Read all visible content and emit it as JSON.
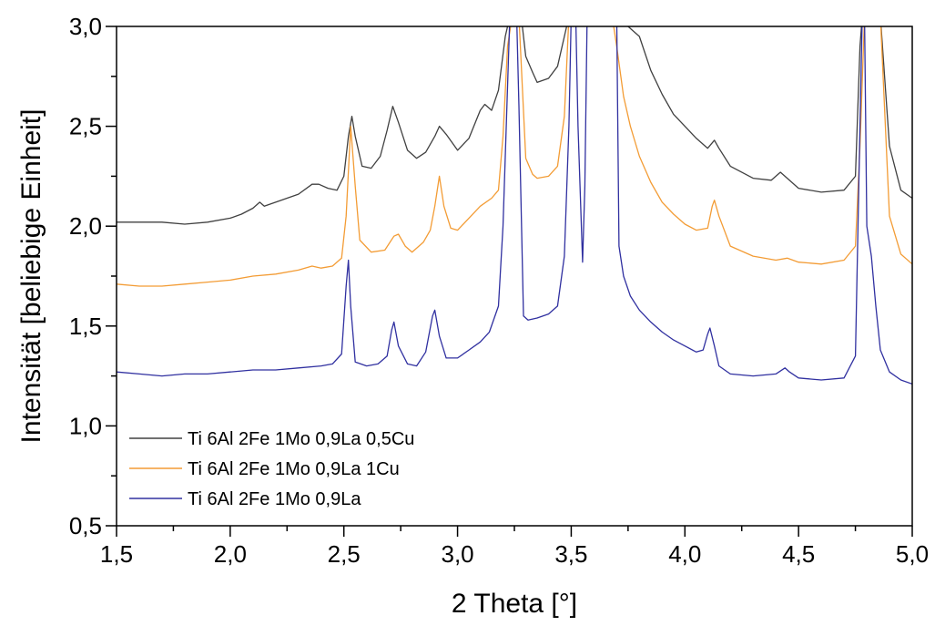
{
  "chart_data": {
    "type": "line",
    "xlabel": "2 Theta [°]",
    "ylabel": "Intensität [beliebige Einheit]",
    "xlim": [
      1.5,
      5.0
    ],
    "ylim": [
      0.5,
      3.0
    ],
    "x_ticks": [
      "1,5",
      "2,0",
      "2,5",
      "3,0",
      "3,5",
      "4,0",
      "4,5",
      "5,0"
    ],
    "y_ticks": [
      "0,5",
      "1,0",
      "1,5",
      "2,0",
      "2,5",
      "3,0"
    ],
    "x_tick_values": [
      1.5,
      2.0,
      2.5,
      3.0,
      3.5,
      4.0,
      4.5,
      5.0
    ],
    "y_tick_values": [
      0.5,
      1.0,
      1.5,
      2.0,
      2.5,
      3.0
    ],
    "grid": false,
    "legend_position": "bottom-left",
    "series": [
      {
        "name": "Ti 6Al 2Fe 1Mo 0,9La 0,5Cu",
        "color": "#404040",
        "points": [
          [
            1.5,
            2.02
          ],
          [
            1.6,
            2.02
          ],
          [
            1.7,
            2.02
          ],
          [
            1.8,
            2.01
          ],
          [
            1.9,
            2.02
          ],
          [
            2.0,
            2.04
          ],
          [
            2.05,
            2.06
          ],
          [
            2.1,
            2.09
          ],
          [
            2.13,
            2.12
          ],
          [
            2.15,
            2.1
          ],
          [
            2.2,
            2.12
          ],
          [
            2.3,
            2.16
          ],
          [
            2.36,
            2.21
          ],
          [
            2.39,
            2.21
          ],
          [
            2.43,
            2.19
          ],
          [
            2.47,
            2.18
          ],
          [
            2.5,
            2.25
          ],
          [
            2.52,
            2.45
          ],
          [
            2.535,
            2.55
          ],
          [
            2.55,
            2.45
          ],
          [
            2.58,
            2.3
          ],
          [
            2.62,
            2.29
          ],
          [
            2.66,
            2.35
          ],
          [
            2.69,
            2.48
          ],
          [
            2.715,
            2.6
          ],
          [
            2.74,
            2.52
          ],
          [
            2.78,
            2.38
          ],
          [
            2.82,
            2.34
          ],
          [
            2.86,
            2.37
          ],
          [
            2.9,
            2.45
          ],
          [
            2.92,
            2.5
          ],
          [
            2.95,
            2.46
          ],
          [
            3.0,
            2.38
          ],
          [
            3.05,
            2.44
          ],
          [
            3.1,
            2.58
          ],
          [
            3.12,
            2.61
          ],
          [
            3.15,
            2.58
          ],
          [
            3.18,
            2.68
          ],
          [
            3.21,
            2.95
          ],
          [
            3.23,
            3.05
          ],
          [
            3.26,
            3.05
          ],
          [
            3.28,
            3.05
          ],
          [
            3.3,
            2.85
          ],
          [
            3.33,
            2.77
          ],
          [
            3.35,
            2.72
          ],
          [
            3.4,
            2.74
          ],
          [
            3.44,
            2.8
          ],
          [
            3.47,
            2.95
          ],
          [
            3.49,
            3.05
          ],
          [
            3.55,
            3.05
          ],
          [
            3.7,
            3.05
          ],
          [
            3.8,
            2.95
          ],
          [
            3.85,
            2.78
          ],
          [
            3.9,
            2.66
          ],
          [
            3.95,
            2.56
          ],
          [
            4.0,
            2.5
          ],
          [
            4.05,
            2.44
          ],
          [
            4.1,
            2.39
          ],
          [
            4.13,
            2.43
          ],
          [
            4.15,
            2.39
          ],
          [
            4.2,
            2.3
          ],
          [
            4.3,
            2.24
          ],
          [
            4.38,
            2.23
          ],
          [
            4.42,
            2.27
          ],
          [
            4.45,
            2.24
          ],
          [
            4.5,
            2.19
          ],
          [
            4.6,
            2.17
          ],
          [
            4.7,
            2.18
          ],
          [
            4.75,
            2.25
          ],
          [
            4.77,
            2.9
          ],
          [
            4.78,
            3.05
          ],
          [
            4.86,
            3.05
          ],
          [
            4.9,
            2.4
          ],
          [
            4.95,
            2.18
          ],
          [
            5.0,
            2.14
          ]
        ]
      },
      {
        "name": "Ti 6Al 2Fe 1Mo 0,9La 1Cu",
        "color": "#f39c35",
        "points": [
          [
            1.5,
            1.71
          ],
          [
            1.6,
            1.7
          ],
          [
            1.7,
            1.7
          ],
          [
            1.8,
            1.71
          ],
          [
            1.9,
            1.72
          ],
          [
            2.0,
            1.73
          ],
          [
            2.1,
            1.75
          ],
          [
            2.2,
            1.76
          ],
          [
            2.3,
            1.78
          ],
          [
            2.36,
            1.8
          ],
          [
            2.4,
            1.79
          ],
          [
            2.45,
            1.8
          ],
          [
            2.49,
            1.84
          ],
          [
            2.51,
            2.05
          ],
          [
            2.53,
            2.5
          ],
          [
            2.55,
            2.2
          ],
          [
            2.57,
            1.93
          ],
          [
            2.62,
            1.87
          ],
          [
            2.68,
            1.88
          ],
          [
            2.72,
            1.95
          ],
          [
            2.74,
            1.96
          ],
          [
            2.77,
            1.9
          ],
          [
            2.8,
            1.87
          ],
          [
            2.85,
            1.92
          ],
          [
            2.88,
            1.98
          ],
          [
            2.9,
            2.1
          ],
          [
            2.92,
            2.25
          ],
          [
            2.94,
            2.1
          ],
          [
            2.97,
            1.99
          ],
          [
            3.0,
            1.98
          ],
          [
            3.05,
            2.04
          ],
          [
            3.1,
            2.1
          ],
          [
            3.15,
            2.14
          ],
          [
            3.18,
            2.18
          ],
          [
            3.2,
            2.45
          ],
          [
            3.22,
            2.9
          ],
          [
            3.24,
            3.05
          ],
          [
            3.27,
            3.05
          ],
          [
            3.3,
            2.34
          ],
          [
            3.33,
            2.26
          ],
          [
            3.35,
            2.24
          ],
          [
            3.4,
            2.25
          ],
          [
            3.44,
            2.3
          ],
          [
            3.47,
            2.55
          ],
          [
            3.49,
            3.05
          ],
          [
            3.6,
            3.05
          ],
          [
            3.68,
            3.05
          ],
          [
            3.7,
            2.9
          ],
          [
            3.73,
            2.65
          ],
          [
            3.76,
            2.5
          ],
          [
            3.8,
            2.35
          ],
          [
            3.85,
            2.22
          ],
          [
            3.9,
            2.12
          ],
          [
            3.95,
            2.06
          ],
          [
            4.0,
            2.01
          ],
          [
            4.05,
            1.98
          ],
          [
            4.1,
            1.99
          ],
          [
            4.12,
            2.1
          ],
          [
            4.13,
            2.13
          ],
          [
            4.15,
            2.05
          ],
          [
            4.2,
            1.9
          ],
          [
            4.3,
            1.85
          ],
          [
            4.4,
            1.83
          ],
          [
            4.45,
            1.84
          ],
          [
            4.5,
            1.82
          ],
          [
            4.6,
            1.81
          ],
          [
            4.7,
            1.83
          ],
          [
            4.75,
            1.9
          ],
          [
            4.77,
            2.4
          ],
          [
            4.79,
            3.05
          ],
          [
            4.84,
            3.05
          ],
          [
            4.86,
            3.05
          ],
          [
            4.9,
            2.05
          ],
          [
            4.95,
            1.86
          ],
          [
            5.0,
            1.81
          ]
        ]
      },
      {
        "name": "Ti 6Al 2Fe 1Mo 0,9La",
        "color": "#3030a0",
        "points": [
          [
            1.5,
            1.27
          ],
          [
            1.6,
            1.26
          ],
          [
            1.7,
            1.25
          ],
          [
            1.8,
            1.26
          ],
          [
            1.9,
            1.26
          ],
          [
            2.0,
            1.27
          ],
          [
            2.1,
            1.28
          ],
          [
            2.2,
            1.28
          ],
          [
            2.3,
            1.29
          ],
          [
            2.4,
            1.3
          ],
          [
            2.45,
            1.31
          ],
          [
            2.49,
            1.36
          ],
          [
            2.51,
            1.7
          ],
          [
            2.52,
            1.83
          ],
          [
            2.53,
            1.6
          ],
          [
            2.55,
            1.32
          ],
          [
            2.6,
            1.3
          ],
          [
            2.65,
            1.31
          ],
          [
            2.69,
            1.35
          ],
          [
            2.71,
            1.48
          ],
          [
            2.72,
            1.52
          ],
          [
            2.74,
            1.4
          ],
          [
            2.78,
            1.31
          ],
          [
            2.82,
            1.3
          ],
          [
            2.86,
            1.37
          ],
          [
            2.89,
            1.55
          ],
          [
            2.9,
            1.58
          ],
          [
            2.92,
            1.45
          ],
          [
            2.95,
            1.34
          ],
          [
            3.0,
            1.34
          ],
          [
            3.05,
            1.38
          ],
          [
            3.1,
            1.42
          ],
          [
            3.14,
            1.47
          ],
          [
            3.18,
            1.6
          ],
          [
            3.2,
            2.0
          ],
          [
            3.22,
            2.7
          ],
          [
            3.23,
            3.05
          ],
          [
            3.26,
            3.05
          ],
          [
            3.27,
            2.6
          ],
          [
            3.29,
            1.55
          ],
          [
            3.31,
            1.53
          ],
          [
            3.35,
            1.54
          ],
          [
            3.4,
            1.56
          ],
          [
            3.44,
            1.6
          ],
          [
            3.47,
            1.85
          ],
          [
            3.49,
            2.5
          ],
          [
            3.5,
            3.05
          ],
          [
            3.52,
            3.05
          ],
          [
            3.53,
            2.5
          ],
          [
            3.55,
            1.82
          ],
          [
            3.56,
            2.2
          ],
          [
            3.57,
            3.05
          ],
          [
            3.65,
            3.05
          ],
          [
            3.7,
            3.05
          ],
          [
            3.71,
            1.9
          ],
          [
            3.73,
            1.75
          ],
          [
            3.76,
            1.65
          ],
          [
            3.8,
            1.58
          ],
          [
            3.85,
            1.52
          ],
          [
            3.9,
            1.47
          ],
          [
            3.95,
            1.43
          ],
          [
            4.0,
            1.4
          ],
          [
            4.05,
            1.37
          ],
          [
            4.08,
            1.38
          ],
          [
            4.1,
            1.46
          ],
          [
            4.11,
            1.49
          ],
          [
            4.13,
            1.4
          ],
          [
            4.15,
            1.3
          ],
          [
            4.2,
            1.26
          ],
          [
            4.3,
            1.25
          ],
          [
            4.4,
            1.26
          ],
          [
            4.44,
            1.29
          ],
          [
            4.46,
            1.27
          ],
          [
            4.5,
            1.24
          ],
          [
            4.6,
            1.23
          ],
          [
            4.7,
            1.24
          ],
          [
            4.75,
            1.35
          ],
          [
            4.77,
            2.5
          ],
          [
            4.78,
            3.05
          ],
          [
            4.79,
            3.05
          ],
          [
            4.8,
            2.0
          ],
          [
            4.82,
            1.85
          ],
          [
            4.84,
            1.6
          ],
          [
            4.86,
            1.38
          ],
          [
            4.9,
            1.27
          ],
          [
            4.95,
            1.23
          ],
          [
            5.0,
            1.21
          ]
        ]
      }
    ]
  }
}
